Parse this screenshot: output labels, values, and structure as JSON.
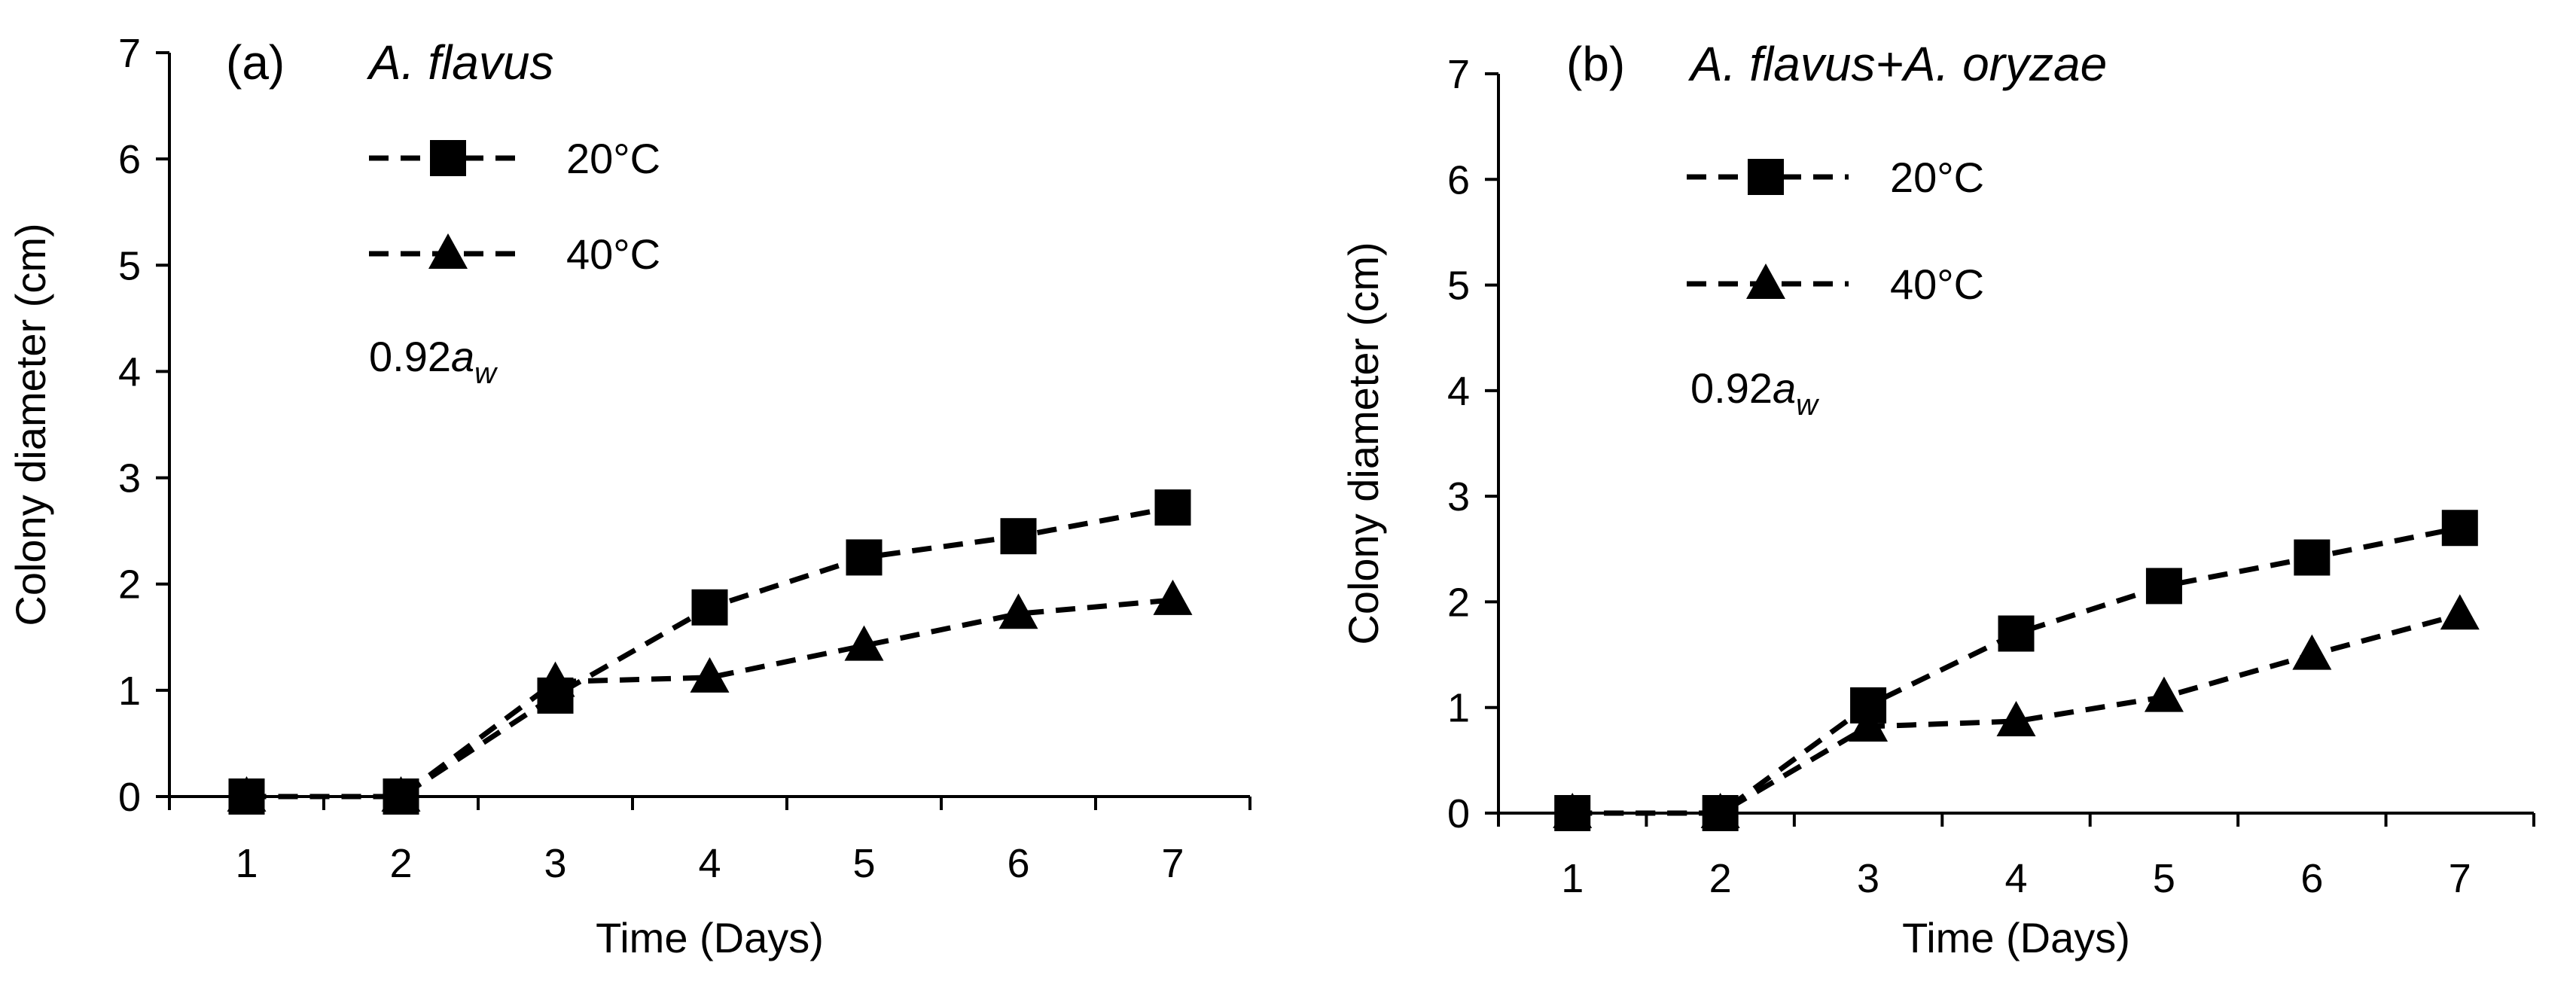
{
  "chart_data": [
    {
      "type": "line",
      "panel_label": "(a)",
      "title": "A. flavus",
      "title_parts": [
        {
          "text": "A. flavus",
          "italic": true
        }
      ],
      "xlabel": "Time (Days)",
      "ylabel": "Colony diameter (cm)",
      "categories": [
        "1",
        "2",
        "3",
        "4",
        "5",
        "6",
        "7"
      ],
      "ylim": [
        0,
        7
      ],
      "yticks": [
        "0",
        "1",
        "2",
        "3",
        "4",
        "5",
        "6",
        "7"
      ],
      "grid": false,
      "legend_position": "top-left",
      "annotation": {
        "base": "0.92",
        "italic": "a",
        "subscript": "w"
      },
      "series": [
        {
          "name": "20°C",
          "marker": "square",
          "line": "dashed",
          "color": "#000000",
          "values": [
            0,
            0,
            0.95,
            1.78,
            2.25,
            2.45,
            2.72
          ]
        },
        {
          "name": "40°C",
          "marker": "triangle",
          "line": "dashed",
          "color": "#000000",
          "values": [
            0,
            0,
            1.08,
            1.12,
            1.42,
            1.72,
            1.85
          ]
        }
      ]
    },
    {
      "type": "line",
      "panel_label": "(b)",
      "title": "A. flavus+A. oryzae",
      "title_parts": [
        {
          "text": "A. flavus+A. oryzae",
          "italic": true
        }
      ],
      "xlabel": "Time (Days)",
      "ylabel": "Colony diameter (cm)",
      "categories": [
        "1",
        "2",
        "3",
        "4",
        "5",
        "6",
        "7"
      ],
      "ylim": [
        0,
        7
      ],
      "yticks": [
        "0",
        "1",
        "2",
        "3",
        "4",
        "5",
        "6",
        "7"
      ],
      "grid": false,
      "legend_position": "top-left",
      "annotation": {
        "base": "0.92",
        "italic": "a",
        "subscript": "w"
      },
      "series": [
        {
          "name": "20°C",
          "marker": "square",
          "line": "dashed",
          "color": "#000000",
          "values": [
            0,
            0,
            1.02,
            1.7,
            2.15,
            2.42,
            2.7
          ]
        },
        {
          "name": "40°C",
          "marker": "triangle",
          "line": "dashed",
          "color": "#000000",
          "values": [
            0,
            0,
            0.82,
            0.87,
            1.1,
            1.5,
            1.88
          ]
        }
      ]
    }
  ]
}
